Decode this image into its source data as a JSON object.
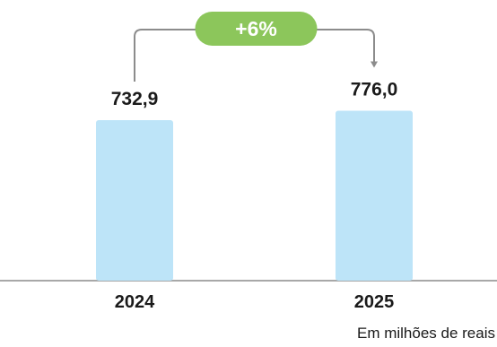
{
  "chart_data": {
    "type": "bar",
    "categories": [
      "2024",
      "2025"
    ],
    "values": [
      732.9,
      776.0
    ],
    "value_labels": [
      "732,9",
      "776,0"
    ],
    "growth_label": "+6%",
    "unit_note": "Em milhões de reais",
    "title": "",
    "xlabel": "",
    "ylabel": "",
    "grid": false,
    "legend": "none"
  },
  "colors": {
    "bar": "#bde4f8",
    "axis": "#8c8c8c",
    "connector": "#8c8c8c",
    "badge": "#8cc65b",
    "badge_text": "#ffffff",
    "label_text": "#1a1a1a"
  }
}
